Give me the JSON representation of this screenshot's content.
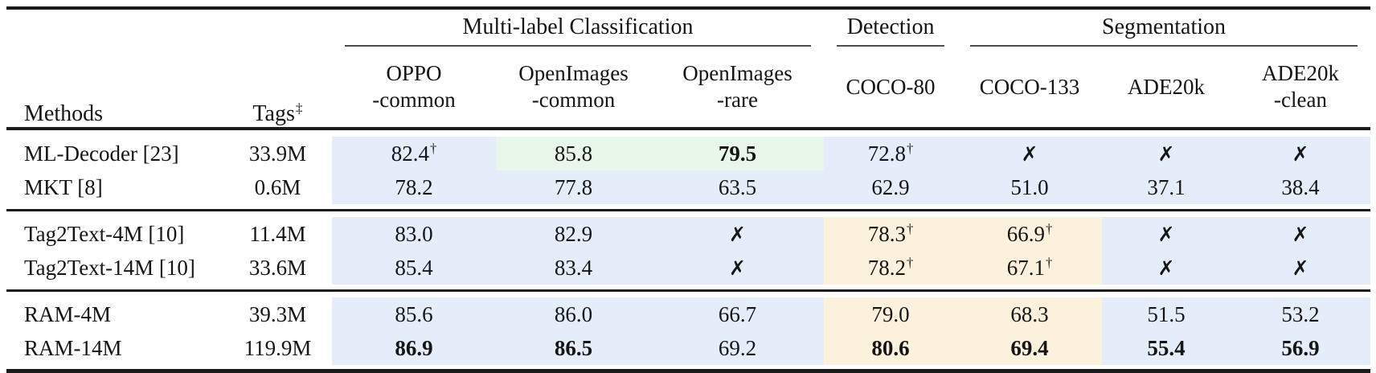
{
  "table": {
    "colors": {
      "blue": "#e4edf9",
      "green": "#e9f6ea",
      "orange": "#fcf1dc"
    },
    "header": {
      "methods": "Methods",
      "tags": "Tags",
      "tags_sup": "‡",
      "groups": [
        {
          "label": "Multi-label Classification"
        },
        {
          "label": "Detection"
        },
        {
          "label": "Segmentation"
        }
      ],
      "columns": [
        {
          "line1": "OPPO",
          "line2": "-common"
        },
        {
          "line1": "OpenImages",
          "line2": "-common"
        },
        {
          "line1": "OpenImages",
          "line2": "-rare"
        },
        {
          "line1": "COCO-80",
          "line2": ""
        },
        {
          "line1": "COCO-133",
          "line2": ""
        },
        {
          "line1": "ADE20k",
          "line2": ""
        },
        {
          "line1": "ADE20k",
          "line2": "-clean"
        }
      ]
    },
    "groups": [
      {
        "rows": [
          {
            "method": "ML-Decoder [23]",
            "tags": "33.9M",
            "cells": [
              {
                "v": "82.4",
                "sup": "†",
                "bg": "blue"
              },
              {
                "v": "85.8",
                "bg": "green"
              },
              {
                "v": "79.5",
                "bold": true,
                "bg": "green"
              },
              {
                "v": "72.8",
                "sup": "†",
                "bg": "blue"
              },
              {
                "v": "✗",
                "cross": true,
                "bg": "blue"
              },
              {
                "v": "✗",
                "cross": true,
                "bg": "blue"
              },
              {
                "v": "✗",
                "cross": true,
                "bg": "blue"
              }
            ]
          },
          {
            "method": "MKT [8]",
            "tags": "0.6M",
            "cells": [
              {
                "v": "78.2",
                "bg": "blue"
              },
              {
                "v": "77.8",
                "bg": "blue"
              },
              {
                "v": "63.5",
                "bg": "blue"
              },
              {
                "v": "62.9",
                "bg": "blue"
              },
              {
                "v": "51.0",
                "bg": "blue"
              },
              {
                "v": "37.1",
                "bg": "blue"
              },
              {
                "v": "38.4",
                "bg": "blue"
              }
            ]
          }
        ]
      },
      {
        "rows": [
          {
            "method": "Tag2Text-4M [10]",
            "tags": "11.4M",
            "cells": [
              {
                "v": "83.0",
                "bg": "blue"
              },
              {
                "v": "82.9",
                "bg": "blue"
              },
              {
                "v": "✗",
                "cross": true,
                "bg": "blue"
              },
              {
                "v": "78.3",
                "sup": "†",
                "bg": "orange"
              },
              {
                "v": "66.9",
                "sup": "†",
                "bg": "orange"
              },
              {
                "v": "✗",
                "cross": true,
                "bg": "blue"
              },
              {
                "v": "✗",
                "cross": true,
                "bg": "blue"
              }
            ]
          },
          {
            "method": "Tag2Text-14M [10]",
            "tags": "33.6M",
            "cells": [
              {
                "v": "85.4",
                "bg": "blue"
              },
              {
                "v": "83.4",
                "bg": "blue"
              },
              {
                "v": "✗",
                "cross": true,
                "bg": "blue"
              },
              {
                "v": "78.2",
                "sup": "†",
                "bg": "orange"
              },
              {
                "v": "67.1",
                "sup": "†",
                "bg": "orange"
              },
              {
                "v": "✗",
                "cross": true,
                "bg": "blue"
              },
              {
                "v": "✗",
                "cross": true,
                "bg": "blue"
              }
            ]
          }
        ]
      },
      {
        "rows": [
          {
            "method": "RAM-4M",
            "tags": "39.3M",
            "cells": [
              {
                "v": "85.6",
                "bg": "blue"
              },
              {
                "v": "86.0",
                "bg": "blue"
              },
              {
                "v": "66.7",
                "bg": "blue"
              },
              {
                "v": "79.0",
                "bg": "orange"
              },
              {
                "v": "68.3",
                "bg": "orange"
              },
              {
                "v": "51.5",
                "bg": "blue"
              },
              {
                "v": "53.2",
                "bg": "blue"
              }
            ]
          },
          {
            "method": "RAM-14M",
            "tags": "119.9M",
            "cells": [
              {
                "v": "86.9",
                "bold": true,
                "bg": "blue"
              },
              {
                "v": "86.5",
                "bold": true,
                "bg": "blue"
              },
              {
                "v": "69.2",
                "bg": "blue"
              },
              {
                "v": "80.6",
                "bold": true,
                "bg": "orange"
              },
              {
                "v": "69.4",
                "bold": true,
                "bg": "orange"
              },
              {
                "v": "55.4",
                "bold": true,
                "bg": "blue"
              },
              {
                "v": "56.9",
                "bold": true,
                "bg": "blue"
              }
            ]
          }
        ]
      }
    ]
  }
}
